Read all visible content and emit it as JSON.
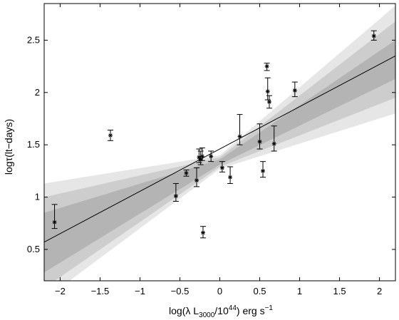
{
  "chart_data": {
    "type": "scatter",
    "xlabel": {
      "prefix": "log(λ L",
      "sub": "3000",
      "mid": "/10",
      "sup": "44",
      "suffix": ") erg s",
      "sup2": "−1"
    },
    "ylabel": "logτ(lt−days)",
    "xlim": [
      -2.2,
      2.2
    ],
    "ylim": [
      0.2,
      2.85
    ],
    "xticks": [
      -2,
      -1.5,
      -1,
      -0.5,
      0,
      0.5,
      1,
      1.5,
      2
    ],
    "xtick_labels": [
      "−2",
      "−1.5",
      "−1",
      "−0.5",
      "0",
      "0.5",
      "1",
      "1.5",
      "2"
    ],
    "yticks": [
      0.5,
      1,
      1.5,
      2,
      2.5
    ],
    "ytick_labels": [
      "0.5",
      "1",
      "1.5",
      "2",
      "2.5"
    ],
    "fit_line": {
      "x": [
        -2.2,
        2.2
      ],
      "y": [
        0.57,
        2.35
      ]
    },
    "confidence_bands": [
      {
        "level": "outer",
        "color": "#e6e6e6",
        "x": [
          -2.2,
          0.0,
          2.2
        ],
        "upper": [
          1.13,
          1.4,
          2.83
        ],
        "lower": [
          0.02,
          1.27,
          1.8
        ]
      },
      {
        "level": "middle",
        "color": "#cdcdcd",
        "x": [
          -2.2,
          0.0,
          2.2
        ],
        "upper": [
          1.0,
          1.38,
          2.68
        ],
        "lower": [
          0.13,
          1.29,
          1.95
        ]
      },
      {
        "level": "inner",
        "color": "#b4b4b4",
        "x": [
          -2.2,
          0.0,
          2.2
        ],
        "upper": [
          0.85,
          1.36,
          2.5
        ],
        "lower": [
          0.28,
          1.31,
          2.13
        ]
      }
    ],
    "points": [
      {
        "x": -2.07,
        "y": 0.76,
        "yerr_low": 0.06,
        "yerr_high": 0.17
      },
      {
        "x": -1.37,
        "y": 1.59,
        "yerr_low": 0.05,
        "yerr_high": 0.05
      },
      {
        "x": -0.55,
        "y": 1.01,
        "yerr_low": 0.05,
        "yerr_high": 0.12
      },
      {
        "x": -0.42,
        "y": 1.23,
        "yerr_low": 0.03,
        "yerr_high": 0.03
      },
      {
        "x": -0.29,
        "y": 1.16,
        "yerr_low": 0.06,
        "yerr_high": 0.12
      },
      {
        "x": -0.26,
        "y": 1.38,
        "yerr_low": 0.05,
        "yerr_high": 0.08
      },
      {
        "x": -0.24,
        "y": 1.36,
        "yerr_low": 0.05,
        "yerr_high": 0.08
      },
      {
        "x": -0.22,
        "y": 1.39,
        "yerr_low": 0.04,
        "yerr_high": 0.08
      },
      {
        "x": -0.21,
        "y": 0.66,
        "yerr_low": 0.05,
        "yerr_high": 0.06
      },
      {
        "x": -0.11,
        "y": 1.39,
        "yerr_low": 0.05,
        "yerr_high": 0.05
      },
      {
        "x": 0.03,
        "y": 1.28,
        "yerr_low": 0.04,
        "yerr_high": 0.06
      },
      {
        "x": 0.13,
        "y": 1.19,
        "yerr_low": 0.06,
        "yerr_high": 0.1
      },
      {
        "x": 0.25,
        "y": 1.58,
        "yerr_low": 0.08,
        "yerr_high": 0.21
      },
      {
        "x": 0.5,
        "y": 1.53,
        "yerr_low": 0.07,
        "yerr_high": 0.17
      },
      {
        "x": 0.54,
        "y": 1.25,
        "yerr_low": 0.06,
        "yerr_high": 0.09
      },
      {
        "x": 0.59,
        "y": 2.25,
        "yerr_low": 0.04,
        "yerr_high": 0.03
      },
      {
        "x": 0.6,
        "y": 2.01,
        "yerr_low": 0.08,
        "yerr_high": 0.13
      },
      {
        "x": 0.62,
        "y": 1.91,
        "yerr_low": 0.06,
        "yerr_high": 0.06
      },
      {
        "x": 0.68,
        "y": 1.51,
        "yerr_low": 0.07,
        "yerr_high": 0.17
      },
      {
        "x": 0.94,
        "y": 2.02,
        "yerr_low": 0.06,
        "yerr_high": 0.08
      },
      {
        "x": 1.93,
        "y": 2.54,
        "yerr_low": 0.04,
        "yerr_high": 0.05
      }
    ],
    "grid": false,
    "legend": "none",
    "marker": "asterisk",
    "line_color": "#000000",
    "point_color": "#000000"
  }
}
